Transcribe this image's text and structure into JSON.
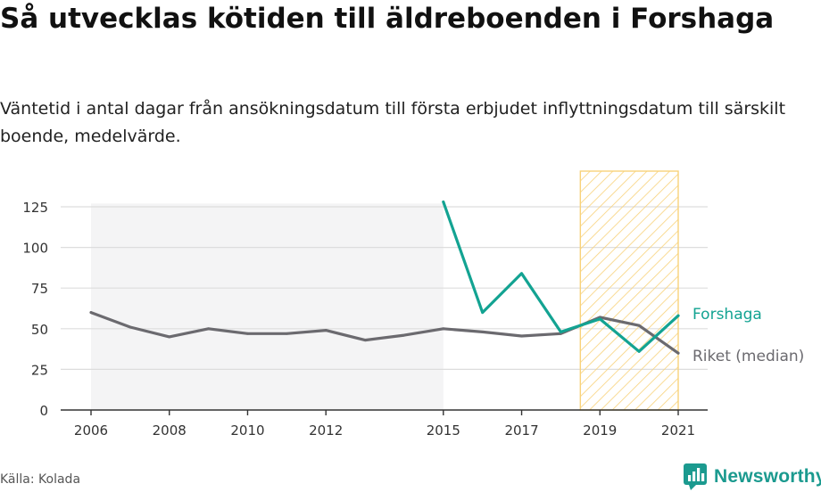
{
  "title": "Så utvecklas kötiden till äldreboenden i Forshaga",
  "subtitle": "Väntetid i antal dagar från ansökningsdatum till första erbjudet inflyttningsdatum till särskilt boende, medelvärde.",
  "source": "Källa: Kolada",
  "brand": "Newsworthy",
  "colors": {
    "forshaga": "#13a392",
    "riket": "#6b6a6f",
    "highlight": "#f8d27a",
    "background_band": "#f4f4f5",
    "grid": "#dddddd"
  },
  "chart_data": {
    "type": "line",
    "xlabel": "",
    "ylabel": "",
    "x_ticks": [
      2006,
      2008,
      2010,
      2012,
      2015,
      2017,
      2019,
      2021
    ],
    "y_ticks": [
      0,
      25,
      50,
      75,
      100,
      125
    ],
    "xlim": [
      2006,
      2021
    ],
    "ylim": [
      0,
      125
    ],
    "grid": true,
    "shaded_region": {
      "x": [
        2006,
        2015
      ],
      "y": [
        0,
        127
      ]
    },
    "highlight_region": {
      "x": [
        2018.5,
        2021
      ],
      "pattern": "hatched"
    },
    "series": [
      {
        "name": "Forshaga",
        "x": [
          2015,
          2016,
          2017,
          2018,
          2019,
          2020,
          2021
        ],
        "values": [
          128,
          60,
          84,
          48,
          56,
          36,
          58
        ]
      },
      {
        "name": "Riket (median)",
        "x": [
          2006,
          2007,
          2008,
          2009,
          2010,
          2011,
          2012,
          2013,
          2014,
          2015,
          2016,
          2017,
          2018,
          2019,
          2020,
          2021
        ],
        "values": [
          60,
          51,
          45,
          50,
          47,
          47,
          49,
          43,
          46,
          50,
          48,
          45.5,
          47,
          57,
          52,
          35
        ]
      }
    ]
  }
}
